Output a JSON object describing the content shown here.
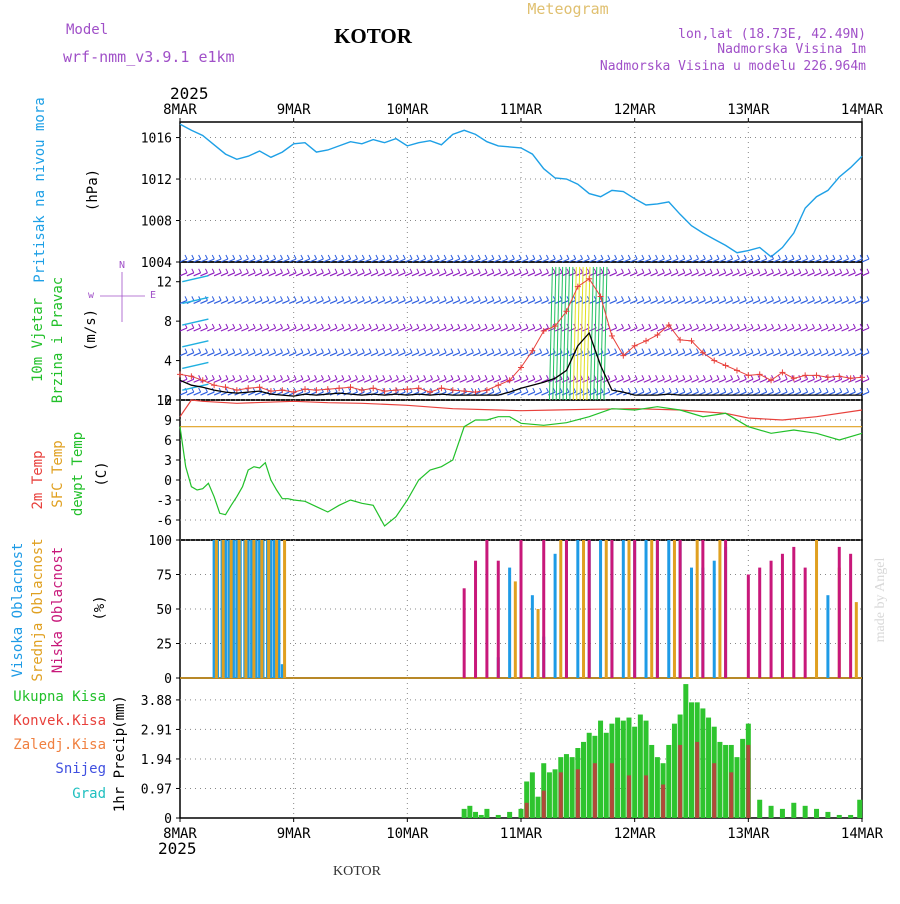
{
  "header": {
    "model_label": "Model",
    "model_name": "wrf-nmm_v3.9.1 e1km",
    "station": "KOTOR",
    "product": "Meteogram",
    "lonlat": "lon,lat (18.73E, 42.49N)",
    "altitude": "Nadmorska Visina 1m",
    "model_altitude": "Nadmorska Visina u modelu 226.964m",
    "year": "2025",
    "footer_station": "KOTOR",
    "credit": "made by Angel"
  },
  "colors": {
    "pressure": "#1ea0e6",
    "temp": "#e8413c",
    "sfc": "#e0a020",
    "dew": "#22c02a",
    "wind_gust": "#e8413c",
    "wind_speed": "#000000",
    "high": "#1e9be6",
    "mid": "#e0a020",
    "low": "#c8187a",
    "total": "#2ec42e",
    "conv": "#b04a3a",
    "grid": "#888888",
    "purple": "#a050c8"
  },
  "chart_data": [
    {
      "type": "line",
      "panel": "pressure",
      "ylabel": [
        "Pritisak na nivou mora",
        "(hPa)"
      ],
      "x_ticks": [
        "8MAR",
        "9MAR",
        "10MAR",
        "11MAR",
        "12MAR",
        "13MAR",
        "14MAR"
      ],
      "ylim": [
        1004,
        1017.5
      ],
      "y_ticks": [
        1004,
        1008,
        1012,
        1016
      ],
      "grid": true,
      "series": [
        {
          "x": [
            0,
            0.1,
            0.2,
            0.3,
            0.4,
            0.5,
            0.6,
            0.7,
            0.8,
            0.9,
            1.0,
            1.1,
            1.2,
            1.3,
            1.4,
            1.5,
            1.6,
            1.7,
            1.8,
            1.9,
            2.0,
            2.1,
            2.2,
            2.3,
            2.4,
            2.5,
            2.6,
            2.7,
            2.8,
            2.9,
            3.0,
            3.1,
            3.2,
            3.3,
            3.4,
            3.5,
            3.6,
            3.7,
            3.8,
            3.9,
            4.0,
            4.1,
            4.2,
            4.3,
            4.4,
            4.5,
            4.6,
            4.7,
            4.8,
            4.9,
            5.0,
            5.1,
            5.2,
            5.3,
            5.4,
            5.5,
            5.6,
            5.7,
            5.8,
            5.9,
            6.0
          ],
          "values": [
            1017.3,
            1016.7,
            1016.2,
            1015.3,
            1014.4,
            1013.9,
            1014.2,
            1014.7,
            1014.1,
            1014.6,
            1015.4,
            1015.5,
            1014.6,
            1014.8,
            1015.2,
            1015.6,
            1015.4,
            1015.8,
            1015.5,
            1015.9,
            1015.2,
            1015.5,
            1015.7,
            1015.3,
            1016.3,
            1016.7,
            1016.3,
            1015.6,
            1015.2,
            1015.1,
            1015.0,
            1014.4,
            1013.0,
            1012.1,
            1012.0,
            1011.5,
            1010.6,
            1010.3,
            1010.9,
            1010.8,
            1010.1,
            1009.5,
            1009.6,
            1009.8,
            1008.6,
            1007.5,
            1006.8,
            1006.2,
            1005.6,
            1004.9,
            1005.1,
            1005.4,
            1004.5,
            1005.4,
            1006.8,
            1009.2,
            1010.3,
            1010.9,
            1012.2,
            1013.1,
            1014.2
          ]
        }
      ]
    },
    {
      "type": "line",
      "panel": "wind",
      "ylabel": [
        "10m Vjetar",
        "Brzina i Pravac",
        "(m/s)"
      ],
      "compass": "N",
      "ylim": [
        0,
        14
      ],
      "y_ticks": [
        0,
        4,
        8,
        12
      ],
      "series": [
        {
          "name": "gust",
          "x": [
            0,
            0.1,
            0.2,
            0.3,
            0.4,
            0.5,
            0.6,
            0.7,
            0.8,
            0.9,
            1.0,
            1.1,
            1.2,
            1.3,
            1.4,
            1.5,
            1.6,
            1.7,
            1.8,
            1.9,
            2.0,
            2.1,
            2.2,
            2.3,
            2.4,
            2.5,
            2.6,
            2.7,
            2.8,
            2.9,
            3.0,
            3.1,
            3.2,
            3.3,
            3.4,
            3.5,
            3.6,
            3.7,
            3.8,
            3.9,
            4.0,
            4.1,
            4.2,
            4.3,
            4.4,
            4.5,
            4.6,
            4.7,
            4.8,
            4.9,
            5.0,
            5.1,
            5.2,
            5.3,
            5.4,
            5.5,
            5.6,
            5.7,
            5.8,
            5.9,
            6.0
          ],
          "values": [
            2.6,
            2.4,
            2.0,
            1.5,
            1.3,
            1.0,
            1.2,
            1.3,
            0.9,
            1.0,
            0.8,
            1.1,
            1.0,
            1.1,
            1.2,
            1.3,
            1.0,
            1.2,
            0.9,
            1.0,
            1.1,
            1.2,
            0.8,
            1.2,
            1.0,
            0.9,
            0.8,
            1.0,
            1.5,
            2.0,
            3.3,
            5.0,
            7.0,
            7.5,
            9.0,
            11.5,
            12.3,
            10.5,
            6.5,
            4.5,
            5.5,
            6.0,
            6.6,
            7.6,
            6.1,
            6.0,
            4.8,
            4.0,
            3.5,
            3.0,
            2.5,
            2.6,
            2.0,
            2.8,
            2.2,
            2.5,
            2.5,
            2.3,
            2.4,
            2.2,
            2.3
          ]
        },
        {
          "name": "speed",
          "x": [
            0,
            0.1,
            0.2,
            0.3,
            0.4,
            0.5,
            0.6,
            0.7,
            0.8,
            0.9,
            1.0,
            1.1,
            1.2,
            1.3,
            1.4,
            1.5,
            1.6,
            1.7,
            1.8,
            1.9,
            2.0,
            2.1,
            2.2,
            2.3,
            2.4,
            2.5,
            2.6,
            2.7,
            2.8,
            2.9,
            3.0,
            3.1,
            3.2,
            3.3,
            3.4,
            3.5,
            3.6,
            3.7,
            3.8,
            3.9,
            4.0,
            4.1,
            4.2,
            4.3,
            4.4,
            4.5,
            4.6,
            4.7,
            4.8,
            4.9,
            5.0,
            5.1,
            5.2,
            5.3,
            5.4,
            5.5,
            5.6,
            5.7,
            5.8,
            5.9,
            6.0
          ],
          "values": [
            2.0,
            1.5,
            1.3,
            1.0,
            0.8,
            0.7,
            0.8,
            0.9,
            0.6,
            0.5,
            0.4,
            0.6,
            0.5,
            0.6,
            0.7,
            0.6,
            0.5,
            0.6,
            0.5,
            0.6,
            0.5,
            0.6,
            0.5,
            0.6,
            0.5,
            0.5,
            0.5,
            0.5,
            0.5,
            0.8,
            1.2,
            1.5,
            1.8,
            2.2,
            3.0,
            5.5,
            6.8,
            3.5,
            1.0,
            0.8,
            0.5,
            0.5,
            0.5,
            0.6,
            0.5,
            0.5,
            0.5,
            0.5,
            0.5,
            0.5,
            0.5,
            0.5,
            0.5,
            0.5,
            0.5,
            0.5,
            0.5,
            0.5,
            0.5,
            0.5,
            0.5
          ]
        }
      ]
    },
    {
      "type": "line",
      "panel": "temperature",
      "ylabel": [
        "2m Temp",
        "SFC Temp",
        "dewpt Temp",
        "(C)"
      ],
      "ylim": [
        -9,
        12
      ],
      "y_ticks": [
        -6,
        -3,
        0,
        3,
        6,
        9,
        12
      ],
      "series": [
        {
          "name": "2m Temp",
          "x": [
            0,
            0.1,
            0.2,
            0.5,
            1.0,
            1.3,
            1.6,
            2.0,
            2.4,
            2.8,
            3.0,
            3.3,
            3.6,
            4.0,
            4.4,
            4.8,
            5.0,
            5.3,
            5.6,
            6.0
          ],
          "values": [
            9.5,
            12.0,
            11.8,
            11.5,
            11.8,
            11.6,
            11.5,
            11.2,
            10.7,
            10.5,
            10.4,
            10.5,
            10.6,
            10.7,
            10.5,
            10.0,
            9.3,
            9.0,
            9.5,
            10.5
          ]
        },
        {
          "name": "SFC Temp",
          "x": [
            0,
            6.0
          ],
          "values": [
            8.0,
            8.0
          ]
        },
        {
          "name": "dewpt Temp",
          "x": [
            0,
            0.05,
            0.1,
            0.15,
            0.2,
            0.25,
            0.3,
            0.35,
            0.4,
            0.45,
            0.5,
            0.55,
            0.6,
            0.65,
            0.7,
            0.75,
            0.8,
            0.85,
            0.9,
            0.95,
            1.0,
            1.1,
            1.2,
            1.3,
            1.4,
            1.5,
            1.6,
            1.7,
            1.8,
            1.9,
            2.0,
            2.1,
            2.2,
            2.3,
            2.4,
            2.5,
            2.6,
            2.7,
            2.8,
            2.9,
            3.0,
            3.2,
            3.4,
            3.6,
            3.8,
            4.0,
            4.2,
            4.4,
            4.6,
            4.8,
            5.0,
            5.2,
            5.4,
            5.6,
            5.8,
            6.0
          ],
          "values": [
            8.0,
            2.0,
            -1.0,
            -1.5,
            -1.3,
            -0.5,
            -2.5,
            -5.0,
            -5.2,
            -3.8,
            -2.5,
            -1.0,
            1.5,
            2.0,
            1.8,
            2.6,
            0.0,
            -1.5,
            -2.8,
            -2.8,
            -3.0,
            -3.2,
            -4.0,
            -4.8,
            -3.8,
            -3.0,
            -3.5,
            -3.8,
            -6.9,
            -5.5,
            -3.0,
            0.0,
            1.5,
            2.0,
            3.0,
            8.0,
            9.0,
            9.0,
            9.5,
            9.5,
            8.5,
            8.2,
            8.6,
            9.5,
            10.7,
            10.5,
            11.0,
            10.5,
            9.5,
            10.0,
            8.0,
            7.0,
            7.5,
            7.0,
            6.0,
            7.0
          ]
        }
      ]
    },
    {
      "type": "bar",
      "panel": "clouds",
      "ylabel": [
        "Visoka Oblacnost",
        "Srednja Oblacnost",
        "Niska Oblacnost",
        "(%)"
      ],
      "ylim": [
        0,
        100
      ],
      "y_ticks": [
        0,
        25,
        50,
        75,
        100
      ],
      "series": [
        {
          "name": "Visoka Oblacnost",
          "x": [
            0.3,
            0.33,
            0.37,
            0.4,
            0.43,
            0.47,
            0.5,
            0.53,
            0.57,
            0.6,
            0.63,
            0.67,
            0.7,
            0.73,
            0.77,
            0.8,
            0.83,
            0.87,
            0.9,
            2.8,
            2.9,
            3.0,
            3.1,
            3.2,
            3.3,
            3.4,
            3.5,
            3.6,
            3.7,
            3.8,
            3.9,
            4.0,
            4.1,
            4.2,
            4.3,
            4.4,
            4.5,
            4.6,
            4.7,
            4.8,
            5.6,
            5.7
          ],
          "values": [
            100,
            100,
            100,
            100,
            100,
            100,
            100,
            100,
            100,
            100,
            100,
            100,
            100,
            100,
            100,
            100,
            100,
            100,
            10,
            15,
            80,
            55,
            60,
            30,
            90,
            100,
            100,
            100,
            100,
            100,
            100,
            100,
            100,
            100,
            100,
            100,
            80,
            80,
            85,
            95,
            0,
            60
          ]
        },
        {
          "name": "Srednja Oblacnost",
          "x": [
            0.32,
            0.38,
            0.45,
            0.52,
            0.58,
            0.65,
            0.72,
            0.78,
            0.85,
            0.92,
            2.95,
            3.15,
            3.35,
            3.55,
            3.75,
            3.95,
            4.15,
            4.35,
            4.55,
            4.75,
            5.6,
            5.8,
            5.95
          ],
          "values": [
            100,
            100,
            100,
            100,
            100,
            100,
            100,
            100,
            100,
            100,
            70,
            50,
            100,
            100,
            100,
            100,
            100,
            100,
            100,
            100,
            100,
            80,
            55
          ]
        },
        {
          "name": "Niska Oblacnost",
          "x": [
            2.5,
            2.6,
            2.7,
            2.8,
            3.0,
            3.2,
            3.4,
            3.6,
            3.8,
            4.0,
            4.2,
            4.4,
            4.6,
            4.8,
            5.0,
            5.1,
            5.2,
            5.3,
            5.4,
            5.5,
            5.8,
            5.9
          ],
          "values": [
            65,
            85,
            100,
            85,
            100,
            100,
            100,
            100,
            100,
            100,
            100,
            100,
            100,
            100,
            75,
            80,
            85,
            90,
            95,
            80,
            95,
            90
          ]
        }
      ]
    },
    {
      "type": "bar",
      "panel": "precip",
      "ylabel": [
        "1hr Precip",
        "(mm)"
      ],
      "legend": [
        "Ukupna Kisa",
        "Konvek.Kisa",
        "Zaledj.Kisa",
        "Snijeg",
        "Grad"
      ],
      "ylim": [
        0,
        4.6
      ],
      "y_ticks": [
        0,
        0.97,
        1.94,
        2.91,
        3.88
      ],
      "series": [
        {
          "name": "Ukupna Kisa",
          "x": [
            2.5,
            2.55,
            2.6,
            2.65,
            2.7,
            2.8,
            2.9,
            3.0,
            3.05,
            3.1,
            3.15,
            3.2,
            3.25,
            3.3,
            3.35,
            3.4,
            3.45,
            3.5,
            3.55,
            3.6,
            3.65,
            3.7,
            3.75,
            3.8,
            3.85,
            3.9,
            3.95,
            4.0,
            4.05,
            4.1,
            4.15,
            4.2,
            4.25,
            4.3,
            4.35,
            4.4,
            4.45,
            4.5,
            4.55,
            4.6,
            4.65,
            4.7,
            4.75,
            4.8,
            4.85,
            4.9,
            4.95,
            5.0,
            5.1,
            5.2,
            5.3,
            5.4,
            5.5,
            5.6,
            5.7,
            5.8,
            5.9,
            5.98
          ],
          "values": [
            0.3,
            0.4,
            0.2,
            0.1,
            0.3,
            0.1,
            0.2,
            0.3,
            1.2,
            1.5,
            0.7,
            1.8,
            1.5,
            1.6,
            2.0,
            2.1,
            2.0,
            2.3,
            2.5,
            2.8,
            2.7,
            3.2,
            2.8,
            3.1,
            3.3,
            3.2,
            3.3,
            3.0,
            3.4,
            3.2,
            2.4,
            2.0,
            1.8,
            2.4,
            3.1,
            3.4,
            4.4,
            3.8,
            3.8,
            3.6,
            3.3,
            3.0,
            2.5,
            2.4,
            2.4,
            2.0,
            2.6,
            3.1,
            0.6,
            0.4,
            0.3,
            0.5,
            0.4,
            0.3,
            0.2,
            0.1,
            0.1,
            0.6
          ]
        },
        {
          "name": "Konvek.Kisa",
          "x": [
            3.05,
            3.2,
            3.35,
            3.5,
            3.65,
            3.8,
            3.95,
            4.1,
            4.25,
            4.4,
            4.55,
            4.7,
            4.85,
            5.0
          ],
          "values": [
            0.5,
            0.9,
            1.5,
            1.6,
            1.8,
            1.8,
            1.4,
            1.4,
            1.1,
            2.4,
            2.5,
            1.8,
            1.5,
            2.4
          ]
        }
      ]
    }
  ],
  "wind_levels": [
    0.5,
    1.8,
    4.5,
    7.0,
    9.8,
    12.6,
    14
  ]
}
